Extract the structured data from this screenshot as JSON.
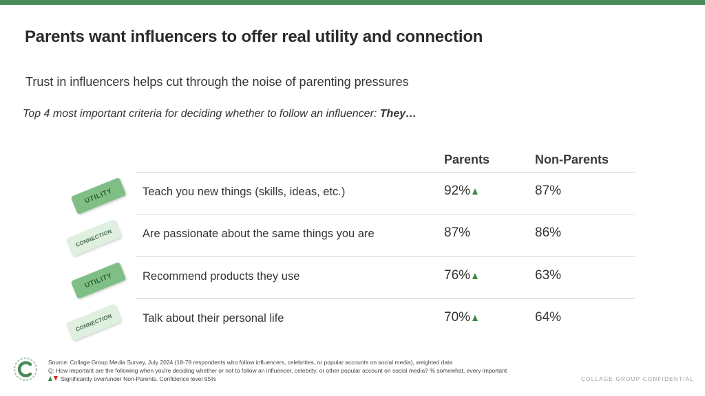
{
  "slide": {
    "title": "Parents want influencers to offer real utility and connection",
    "subtitle": "Trust in influencers helps cut through the noise of parenting pressures",
    "lead": {
      "text": "Top 4 most important criteria for deciding whether to follow an influencer: ",
      "bold": "They…"
    }
  },
  "table": {
    "columns": [
      "Parents",
      "Non-Parents"
    ],
    "rows": [
      {
        "tag": "UTILITY",
        "label": "Teach you new things (skills, ideas, etc.)",
        "parents": "92%",
        "parents_sig": "up",
        "nonparents": "87%"
      },
      {
        "tag": "CONNECTION",
        "label": "Are passionate about the same things you are",
        "parents": "87%",
        "parents_sig": "none",
        "nonparents": "86%"
      },
      {
        "tag": "UTILITY",
        "label": "Recommend products they use",
        "parents": "76%",
        "parents_sig": "up",
        "nonparents": "63%"
      },
      {
        "tag": "CONNECTION",
        "label": "Talk about their personal life",
        "parents": "70%",
        "parents_sig": "up",
        "nonparents": "64%"
      }
    ]
  },
  "footer": {
    "source": "Source: Collage Group Media Survey, July 2024 (18-78 respondents who follow influencers, celebrities, or popular accounts on social media), weighted data",
    "question": "Q: How important are the following when you're deciding whether or not to follow an influencer, celebrity, or other popular account on social media? % somewhat, every important",
    "legend": "Significantly over/under Non-Parents. Confidence level 95%",
    "confidential": "COLLAGE GROUP CONFIDENTIAL"
  },
  "colors": {
    "brand_bar": "#4a8a5a",
    "utility_tag": "#7fbf86",
    "connection_tag": "#dff0e0",
    "sig_up": "#3b8a3e",
    "sig_down": "#c62828"
  },
  "icons": {
    "logo": "collage-group-logo-icon",
    "sig_up": "up-triangle-icon",
    "sig_down": "down-triangle-icon"
  }
}
